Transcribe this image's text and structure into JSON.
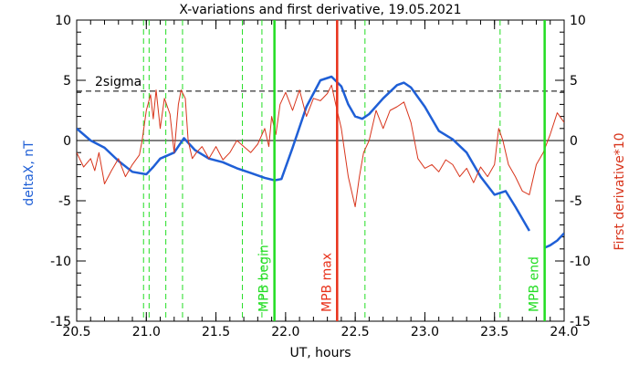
{
  "chart_data": {
    "type": "line",
    "title": "X-variations and first derivative, 19.05.2021",
    "xlabel": "UT, hours",
    "ylabel_left": "deltaX, nT",
    "ylabel_right": "First derivative*10",
    "xlim": [
      20.5,
      24.0
    ],
    "ylim": [
      -15,
      10
    ],
    "x_ticks": [
      "20.5",
      "21.0",
      "21.5",
      "22.0",
      "22.5",
      "23.0",
      "23.5",
      "24.0"
    ],
    "y_ticks": [
      "10",
      "5",
      "0",
      "-5",
      "-10",
      "-15"
    ],
    "sigma_level": 4.1,
    "sigma_label": "2sigma",
    "colors": {
      "deltaX": "#1f5fd6",
      "derivative": "#d8351c",
      "green": "#22dd22",
      "red_marker": "#e8311a"
    },
    "dashed_green_lines": [
      20.98,
      21.02,
      21.14,
      21.26,
      21.69,
      21.83
    ],
    "dashed_green_lines_right": [
      22.57,
      23.54
    ],
    "markers": [
      {
        "label": "MPB begin",
        "x": 21.92,
        "color": "#22dd22"
      },
      {
        "label": "MPB max",
        "x": 22.37,
        "color": "#e8311a"
      },
      {
        "label": "MPB end",
        "x": 23.86,
        "color": "#22dd22"
      }
    ],
    "series": [
      {
        "key": "deltaX",
        "x": [
          20.5,
          20.6,
          20.7,
          20.8,
          20.9,
          21.0,
          21.05,
          21.1,
          21.2,
          21.27,
          21.35,
          21.45,
          21.55,
          21.65,
          21.75,
          21.85,
          21.92,
          21.97,
          22.05,
          22.15,
          22.25,
          22.33,
          22.4,
          22.45,
          22.5,
          22.55,
          22.6,
          22.7,
          22.8,
          22.85,
          22.9,
          23.0,
          23.1,
          23.2,
          23.3,
          23.4,
          23.5,
          23.58,
          23.65,
          23.75
        ],
        "y": [
          1.0,
          0.0,
          -0.6,
          -1.7,
          -2.6,
          -2.8,
          -2.2,
          -1.5,
          -1.0,
          0.2,
          -0.8,
          -1.5,
          -1.8,
          -2.3,
          -2.7,
          -3.1,
          -3.3,
          -3.2,
          -0.6,
          2.8,
          5.0,
          5.3,
          4.5,
          3.0,
          2.0,
          1.8,
          2.2,
          3.5,
          4.6,
          4.8,
          4.4,
          2.8,
          0.8,
          0.1,
          -1.0,
          -3.0,
          -4.5,
          -4.2,
          -5.5,
          -7.5
        ]
      },
      {
        "key": "deltaX_end",
        "x": [
          23.86,
          23.9,
          23.95,
          24.0
        ],
        "y": [
          -8.9,
          -8.7,
          -8.3,
          -7.7
        ]
      },
      {
        "key": "derivative",
        "x": [
          20.5,
          20.55,
          20.6,
          20.63,
          20.66,
          20.7,
          20.75,
          20.8,
          20.85,
          20.9,
          20.95,
          20.97,
          21.0,
          21.03,
          21.05,
          21.07,
          21.1,
          21.13,
          21.17,
          21.2,
          21.23,
          21.25,
          21.28,
          21.3,
          21.33,
          21.36,
          21.4,
          21.45,
          21.5,
          21.55,
          21.6,
          21.65,
          21.7,
          21.75,
          21.8,
          21.85,
          21.88,
          21.9,
          21.93,
          21.96,
          22.0,
          22.05,
          22.1,
          22.15,
          22.2,
          22.25,
          22.3,
          22.33,
          22.36,
          22.4,
          22.45,
          22.5,
          22.53,
          22.56,
          22.6,
          22.65,
          22.7,
          22.75,
          22.8,
          22.85,
          22.9,
          22.95,
          23.0,
          23.05,
          23.1,
          23.15,
          23.2,
          23.25,
          23.3,
          23.35,
          23.4,
          23.45,
          23.5,
          23.53,
          23.56,
          23.6,
          23.65,
          23.7,
          23.75,
          23.8,
          23.85,
          23.9,
          23.95,
          24.0
        ],
        "y": [
          -1.0,
          -2.2,
          -1.5,
          -2.5,
          -1.0,
          -3.6,
          -2.5,
          -1.5,
          -3.0,
          -2.0,
          -1.2,
          0.0,
          2.5,
          3.8,
          1.8,
          4.2,
          1.0,
          3.5,
          2.2,
          -1.0,
          3.0,
          4.2,
          3.5,
          0.0,
          -1.5,
          -1.0,
          -0.5,
          -1.5,
          -0.5,
          -1.6,
          -1.0,
          0.0,
          -0.5,
          -1.0,
          -0.3,
          1.0,
          -0.5,
          2.0,
          0.5,
          3.0,
          4.0,
          2.5,
          4.2,
          2.0,
          3.5,
          3.3,
          3.9,
          4.6,
          3.0,
          1.0,
          -3.0,
          -5.5,
          -3.0,
          -1.0,
          0.0,
          2.5,
          1.0,
          2.5,
          2.8,
          3.2,
          1.5,
          -1.5,
          -2.3,
          -2.0,
          -2.6,
          -1.6,
          -2.0,
          -3.0,
          -2.3,
          -3.5,
          -2.2,
          -3.0,
          -2.0,
          1.0,
          0.0,
          -2.0,
          -3.0,
          -4.2,
          -4.5,
          -2.0,
          -1.0,
          0.5,
          2.3,
          1.5
        ]
      }
    ]
  }
}
